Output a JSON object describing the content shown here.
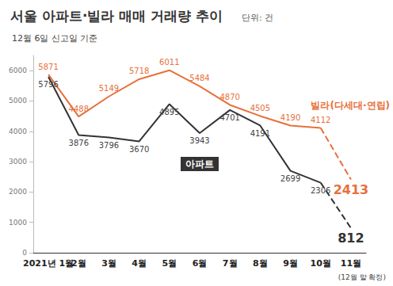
{
  "chart_data": {
    "type": "line",
    "title": "서울 아파트·빌라 매매 거래량 추이",
    "subtitle": "12월 6일 신고일 기준",
    "annotations": [
      "단위: 건",
      "(12월 말 확정)"
    ],
    "categories": [
      "2021년 1월",
      "2월",
      "3월",
      "4월",
      "5월",
      "6월",
      "7월",
      "8월",
      "9월",
      "10월",
      "11월"
    ],
    "series": [
      {
        "name": "빌라(다세대·연립)",
        "color": "#e8703a",
        "line_style": "dashed-end",
        "values": [
          5871,
          4488,
          5149,
          5718,
          6011,
          5484,
          4870,
          4505,
          4190,
          4112,
          2413
        ]
      },
      {
        "name": "아파트",
        "color": "#333333",
        "line_style": "dashed-end",
        "values": [
          5796,
          3876,
          3796,
          3670,
          4895,
          3943,
          4701,
          4191,
          2699,
          2306,
          812
        ]
      }
    ],
    "ylim": [
      0,
      6500
    ],
    "yticks": [
      0,
      1000,
      2000,
      3000,
      4000,
      5000,
      6000
    ],
    "grid": false,
    "data_labels": true
  }
}
